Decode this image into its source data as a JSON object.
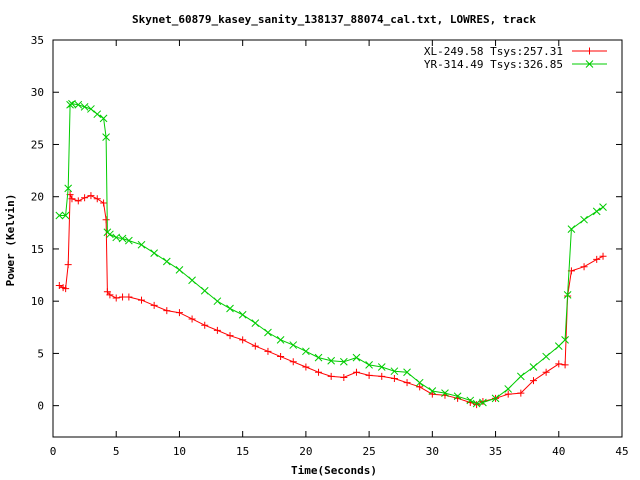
{
  "chart_data": {
    "type": "line",
    "title": "Skynet_60879_kasey_sanity_138137_88074_cal.txt, LOWRES, track",
    "xlabel": "Time(Seconds)",
    "ylabel": "Power (Kelvin)",
    "xlim": [
      0,
      45
    ],
    "ylim": [
      -3,
      35
    ],
    "xticks": [
      "0",
      "5",
      "10",
      "15",
      "20",
      "25",
      "30",
      "35",
      "40",
      "45"
    ],
    "yticks": [
      "0",
      "5",
      "10",
      "15",
      "20",
      "25",
      "30",
      "35"
    ],
    "grid": false,
    "legend_position": "top-right",
    "series": [
      {
        "name": "XL-249.58 Tsys:257.31",
        "color": "#ff0000",
        "marker": "plus",
        "x": [
          0.5,
          0.8,
          1.0,
          1.2,
          1.35,
          1.5,
          2.0,
          2.5,
          3.0,
          3.5,
          4.0,
          4.2,
          4.3,
          4.5,
          5.0,
          5.5,
          6.0,
          7.0,
          8.0,
          9.0,
          10.0,
          11.0,
          12.0,
          13.0,
          14.0,
          15.0,
          16.0,
          17.0,
          18.0,
          19.0,
          20.0,
          21.0,
          22.0,
          23.0,
          24.0,
          25.0,
          26.0,
          27.0,
          28.0,
          29.0,
          30.0,
          31.0,
          32.0,
          33.0,
          33.5,
          34.0,
          35.0,
          36.0,
          37.0,
          38.0,
          39.0,
          40.0,
          40.5,
          40.7,
          41.0,
          42.0,
          43.0,
          43.5
        ],
        "y": [
          11.5,
          11.3,
          11.2,
          13.5,
          20.2,
          19.8,
          19.6,
          19.9,
          20.1,
          19.8,
          19.4,
          17.8,
          10.9,
          10.6,
          10.3,
          10.4,
          10.4,
          10.1,
          9.6,
          9.1,
          8.9,
          8.3,
          7.7,
          7.2,
          6.7,
          6.3,
          5.7,
          5.2,
          4.7,
          4.2,
          3.7,
          3.2,
          2.8,
          2.7,
          3.2,
          2.9,
          2.8,
          2.6,
          2.2,
          1.8,
          1.1,
          1.0,
          0.7,
          0.3,
          0.1,
          0.4,
          0.7,
          1.1,
          1.2,
          2.4,
          3.2,
          4.0,
          3.9,
          10.5,
          12.9,
          13.3,
          14.0,
          14.3
        ]
      },
      {
        "name": "YR-314.49 Tsys:326.85",
        "color": "#00cc00",
        "marker": "cross",
        "x": [
          0.5,
          1.0,
          1.2,
          1.35,
          1.5,
          2.0,
          2.5,
          3.0,
          3.5,
          4.0,
          4.2,
          4.3,
          4.5,
          5.0,
          5.5,
          6.0,
          7.0,
          8.0,
          9.0,
          10.0,
          11.0,
          12.0,
          13.0,
          14.0,
          15.0,
          16.0,
          17.0,
          18.0,
          19.0,
          20.0,
          21.0,
          22.0,
          23.0,
          24.0,
          25.0,
          26.0,
          27.0,
          28.0,
          29.0,
          30.0,
          31.0,
          32.0,
          33.0,
          33.5,
          34.0,
          35.0,
          36.0,
          37.0,
          38.0,
          39.0,
          40.0,
          40.5,
          40.7,
          41.0,
          42.0,
          43.0,
          43.5
        ],
        "y": [
          18.2,
          18.2,
          20.8,
          28.8,
          28.9,
          28.8,
          28.6,
          28.4,
          27.9,
          27.5,
          25.7,
          16.6,
          16.4,
          16.1,
          16.0,
          15.8,
          15.4,
          14.6,
          13.8,
          13.0,
          12.0,
          11.0,
          10.0,
          9.3,
          8.7,
          7.9,
          7.0,
          6.3,
          5.8,
          5.2,
          4.6,
          4.3,
          4.2,
          4.6,
          3.9,
          3.7,
          3.3,
          3.2,
          2.2,
          1.4,
          1.2,
          0.9,
          0.5,
          0.2,
          0.3,
          0.7,
          1.6,
          2.8,
          3.7,
          4.7,
          5.7,
          6.3,
          10.6,
          16.9,
          17.8,
          18.6,
          19.0
        ]
      }
    ]
  }
}
